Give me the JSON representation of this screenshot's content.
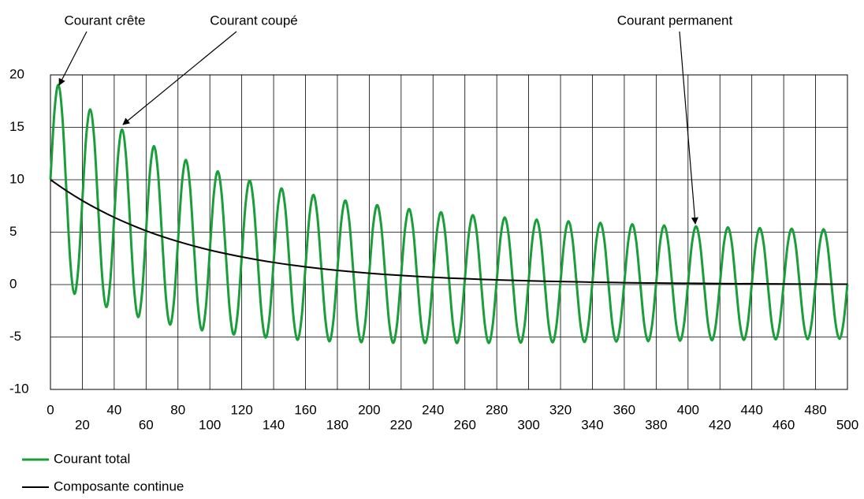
{
  "chart_data": {
    "type": "line",
    "annotations": [
      {
        "text": "Courant crête"
      },
      {
        "text": "Courant coupé"
      },
      {
        "text": "Courant permanent"
      }
    ],
    "xlim": [
      0,
      500
    ],
    "xticks": [
      0,
      20,
      40,
      60,
      80,
      100,
      120,
      140,
      160,
      180,
      200,
      220,
      240,
      260,
      280,
      300,
      320,
      340,
      360,
      380,
      400,
      420,
      440,
      460,
      480,
      500
    ],
    "ylim": [
      -10,
      20
    ],
    "yticks": [
      -10,
      -5,
      0,
      5,
      10,
      15,
      20
    ],
    "grid": true,
    "series": [
      {
        "name": "Courant total",
        "color": "#1a9e3a",
        "x": [
          0,
          2.5,
          5,
          7.5,
          10,
          12.5,
          15,
          17.5,
          20,
          22.5,
          25,
          27.5,
          30,
          32.5,
          35,
          37.5,
          40,
          42.5,
          45,
          47.5,
          50,
          52.5,
          55,
          57.5,
          60,
          62.5,
          65,
          67.5,
          70,
          72.5,
          75,
          77.5,
          80,
          82.5,
          85,
          87.5,
          90,
          92.5,
          95,
          97.5,
          100,
          102.5,
          105,
          107.5,
          110,
          112.5,
          115,
          117.5,
          120,
          122.5,
          125,
          127.5,
          130,
          132.5,
          135,
          137.5,
          140,
          142.5,
          145,
          147.5,
          150,
          152.5,
          155,
          157.5,
          160,
          162.5,
          165,
          167.5,
          170,
          172.5,
          175,
          177.5,
          180,
          182.5,
          185,
          187.5,
          190,
          192.5,
          195,
          197.5,
          200,
          202.5,
          205,
          207.5,
          210,
          212.5,
          215,
          217.5,
          220,
          222.5,
          225,
          227.5,
          230,
          232.5,
          235,
          237.5,
          240,
          242.5,
          245,
          247.5,
          250,
          252.5,
          255,
          257.5,
          260,
          262.5,
          265,
          267.5,
          270,
          272.5,
          275,
          277.5,
          280,
          282.5,
          285,
          287.5,
          290,
          292.5,
          295,
          297.5,
          300,
          302.5,
          305,
          307.5,
          310,
          312.5,
          315,
          317.5,
          320,
          322.5,
          325,
          327.5,
          330,
          332.5,
          335,
          337.5,
          340,
          342.5,
          345,
          347.5,
          350,
          352.5,
          355,
          357.5,
          360,
          362.5,
          365,
          367.5,
          370,
          372.5,
          375,
          377.5,
          380,
          382.5,
          385,
          387.5,
          390,
          392.5,
          395,
          397.5,
          400,
          402.5,
          405,
          407.5,
          410,
          412.5,
          415,
          417.5,
          420,
          422.5,
          425,
          427.5,
          430,
          432.5,
          435,
          437.5,
          440,
          442.5,
          445,
          447.5,
          450,
          452.5,
          455,
          457.5,
          460,
          462.5,
          465,
          467.5,
          470,
          472.5,
          475,
          477.5,
          480,
          482.5,
          485,
          487.5,
          490,
          492.5,
          495,
          497.5,
          500
        ],
        "values": [
          10,
          16.5,
          19.04,
          15.97,
          8.95,
          2.09,
          -0.88,
          1.62,
          8.01,
          14.24,
          16.7,
          13.82,
          7.17,
          0.67,
          -2.14,
          0.29,
          6.41,
          12.4,
          14.78,
          12.06,
          5.74,
          -0.45,
          -3.1,
          -0.75,
          5.13,
          10.89,
          13.2,
          10.62,
          4.59,
          -1.31,
          -3.82,
          -1.55,
          4.11,
          9.66,
          11.89,
          9.44,
          3.68,
          -1.97,
          -4.37,
          -2.16,
          3.29,
          8.65,
          10.81,
          8.47,
          2.95,
          -2.48,
          -4.77,
          -2.63,
          2.64,
          7.81,
          9.92,
          7.67,
          2.36,
          -2.86,
          -5.06,
          -2.99,
          2.11,
          7.13,
          9.17,
          7.01,
          1.89,
          -3.15,
          -5.27,
          -3.25,
          1.69,
          6.56,
          8.55,
          6.47,
          1.51,
          -3.37,
          -5.41,
          -3.45,
          1.35,
          6.08,
          8.02,
          6.01,
          1.21,
          -3.52,
          -5.5,
          -3.59,
          1.08,
          5.69,
          7.58,
          5.63,
          0.97,
          -3.63,
          -5.56,
          -3.68,
          0.87,
          5.36,
          7.21,
          5.32,
          0.78,
          -3.71,
          -5.58,
          -3.75,
          0.7,
          5.09,
          6.9,
          5.05,
          0.62,
          -3.76,
          -5.58,
          -3.79,
          0.56,
          4.86,
          6.63,
          4.83,
          0.5,
          -3.79,
          -5.57,
          -3.81,
          0.45,
          4.66,
          6.4,
          4.64,
          0.4,
          -3.8,
          -5.54,
          -3.82,
          0.36,
          4.5,
          6.2,
          4.48,
          0.32,
          -3.8,
          -5.51,
          -3.82,
          0.29,
          4.35,
          6.04,
          4.34,
          0.26,
          -3.79,
          -5.48,
          -3.81,
          0.23,
          4.23,
          5.89,
          4.22,
          0.21,
          -3.78,
          -5.44,
          -3.79,
          0.18,
          4.13,
          5.76,
          4.12,
          0.16,
          -3.77,
          -5.4,
          -3.77,
          0.15,
          4.04,
          5.65,
          4.04,
          0.13,
          -3.75,
          -5.36,
          -3.75,
          0.12,
          3.97,
          5.56,
          3.96,
          0.11,
          -3.73,
          -5.32,
          -3.73,
          0.09,
          3.9,
          5.47,
          3.9,
          0.08,
          -3.71,
          -5.28,
          -3.71,
          0.08,
          3.84,
          5.4,
          3.84,
          0.07,
          -3.68,
          -5.24,
          -3.69,
          0.06,
          3.79,
          5.34,
          3.79,
          0.05,
          -3.66,
          -5.21,
          -3.67,
          0.05,
          3.75,
          5.28,
          3.75,
          0.04,
          -3.64,
          -5.17,
          -3.65,
          0.04
        ]
      },
      {
        "name": "Composante continue",
        "color": "#000000",
        "x": [
          0,
          10,
          20,
          30,
          40,
          50,
          60,
          70,
          80,
          90,
          100,
          110,
          120,
          130,
          140,
          150,
          160,
          170,
          180,
          190,
          200,
          210,
          220,
          230,
          240,
          250,
          260,
          270,
          280,
          290,
          300,
          310,
          320,
          330,
          340,
          350,
          360,
          370,
          380,
          390,
          400,
          410,
          420,
          430,
          440,
          450,
          460,
          470,
          480,
          490,
          500
        ],
        "values": [
          10,
          8.95,
          8.01,
          7.17,
          6.41,
          5.74,
          5.13,
          4.59,
          4.11,
          3.68,
          3.29,
          2.95,
          2.64,
          2.36,
          2.11,
          1.89,
          1.69,
          1.51,
          1.35,
          1.21,
          1.08,
          0.97,
          0.87,
          0.78,
          0.7,
          0.62,
          0.56,
          0.5,
          0.45,
          0.4,
          0.36,
          0.32,
          0.29,
          0.26,
          0.23,
          0.21,
          0.18,
          0.16,
          0.15,
          0.13,
          0.12,
          0.11,
          0.09,
          0.08,
          0.08,
          0.07,
          0.06,
          0.05,
          0.05,
          0.04,
          0.04
        ]
      }
    ]
  }
}
